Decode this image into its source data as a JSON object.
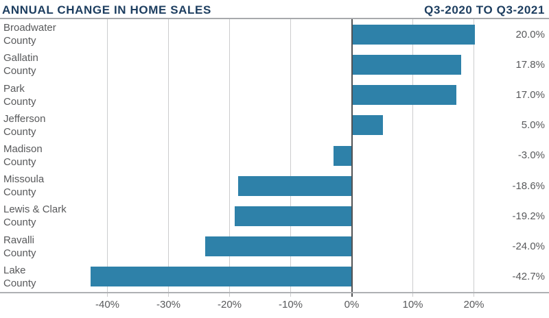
{
  "header": {
    "title": "ANNUAL CHANGE IN HOME SALES",
    "period": "Q3-2020 TO Q3-2021"
  },
  "colors": {
    "bar": "#2e81a9",
    "title_text": "#1c3d5f",
    "label_text": "#58595b",
    "gridline": "#cbcccd",
    "zero_line": "#515254",
    "rule": "#a7a9ac"
  },
  "chart_data": {
    "type": "bar",
    "orientation": "horizontal",
    "title": "ANNUAL CHANGE IN HOME SALES",
    "subtitle": "Q3-2020 TO Q3-2021",
    "categories": [
      "Broadwater County",
      "Gallatin County",
      "Park County",
      "Jefferson County",
      "Madison County",
      "Missoula County",
      "Lewis & Clark County",
      "Ravalli County",
      "Lake County"
    ],
    "category_lines": [
      [
        "Broadwater",
        "County"
      ],
      [
        "Gallatin",
        "County"
      ],
      [
        "Park",
        "County"
      ],
      [
        "Jefferson",
        "County"
      ],
      [
        "Madison",
        "County"
      ],
      [
        "Missoula",
        "County"
      ],
      [
        "Lewis & Clark",
        "County"
      ],
      [
        "Ravalli",
        "County"
      ],
      [
        "Lake",
        "County"
      ]
    ],
    "values": [
      20.0,
      17.8,
      17.0,
      5.0,
      -3.0,
      -18.6,
      -19.2,
      -24.0,
      -42.7
    ],
    "value_labels": [
      "20.0%",
      "17.8%",
      "17.0%",
      "5.0%",
      "-3.0%",
      "-18.6%",
      "-19.2%",
      "-24.0%",
      "-42.7%"
    ],
    "x_ticks": [
      -40,
      -30,
      -20,
      -10,
      0,
      10,
      20
    ],
    "x_tick_labels": [
      "-40%",
      "-30%",
      "-20%",
      "-10%",
      "0%",
      "10%",
      "20%"
    ],
    "xlabel": "",
    "ylabel": "",
    "xlim": [
      -45,
      25
    ],
    "grid": true,
    "legend": false
  }
}
